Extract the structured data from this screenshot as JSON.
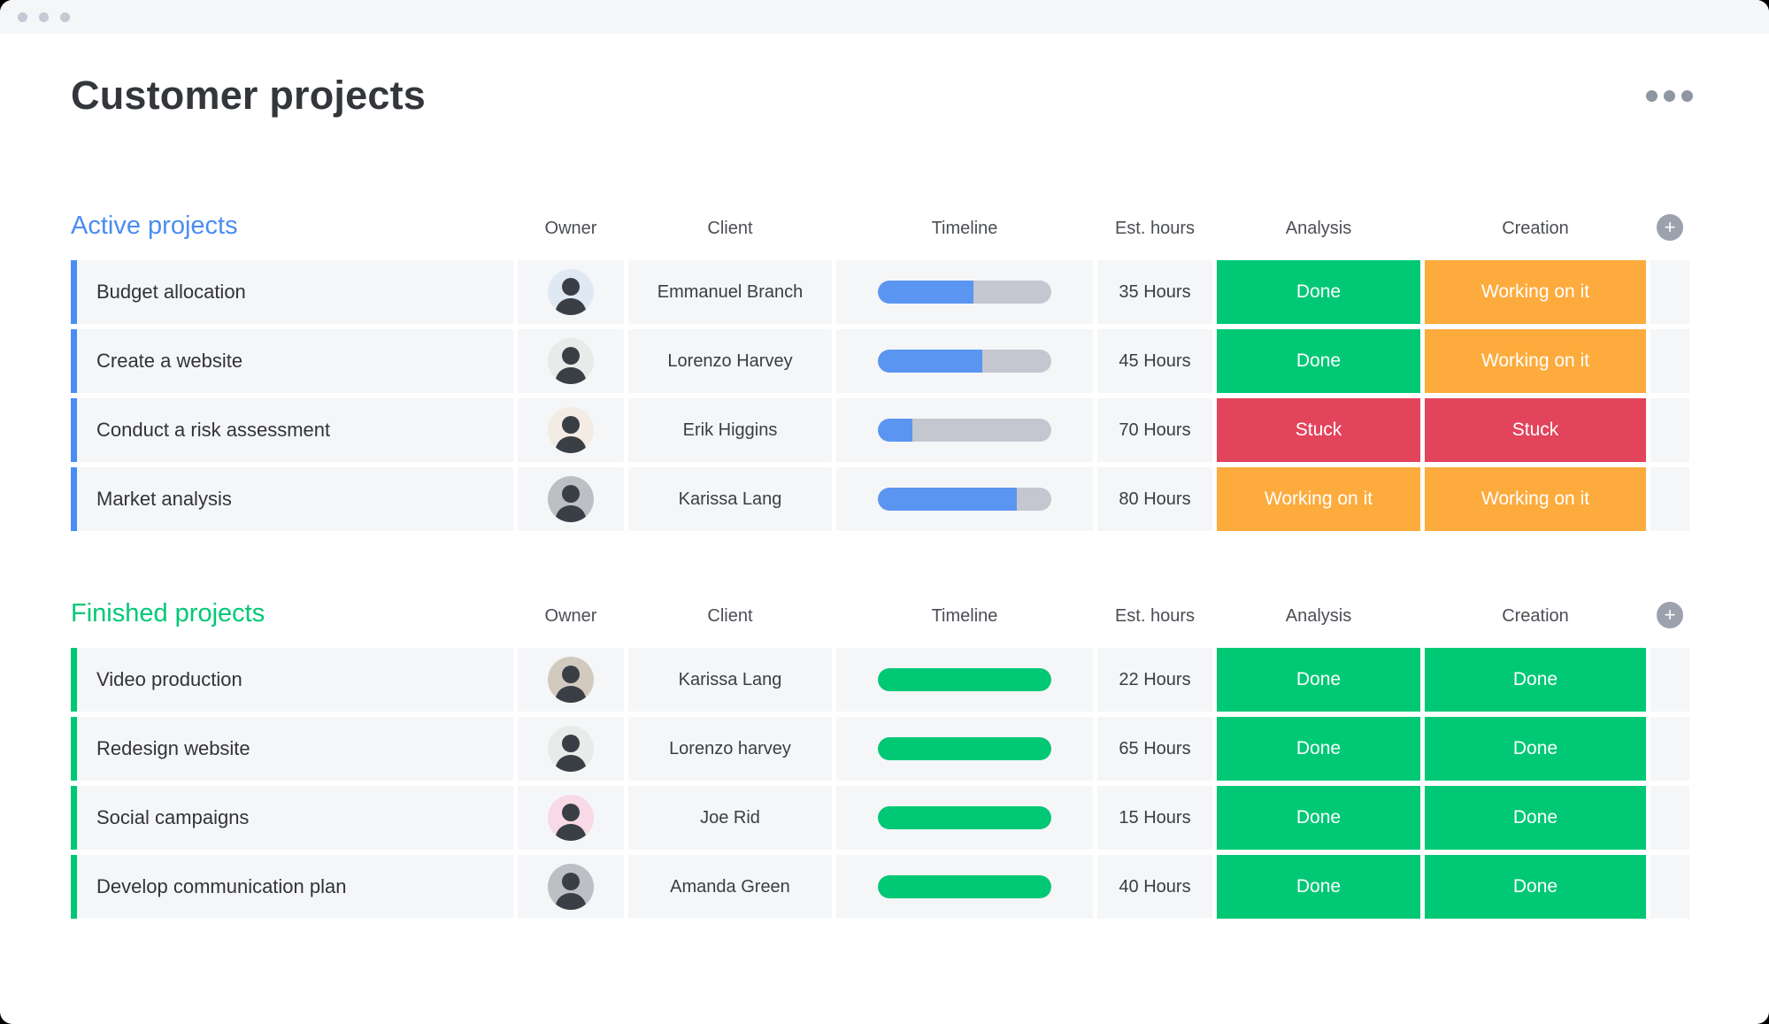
{
  "window": {
    "title": "Customer projects"
  },
  "columns": [
    "Owner",
    "Client",
    "Timeline",
    "Est. hours",
    "Analysis",
    "Creation"
  ],
  "ui": {
    "add_column_glyph": "+"
  },
  "status_colors": {
    "Done": "#00c875",
    "Working on it": "#fdab3d",
    "Stuck": "#e2445c"
  },
  "groups": [
    {
      "name": "Active projects",
      "accent": "#4a8df2",
      "timeline_color": "#5a95f2",
      "rows": [
        {
          "name": "Budget allocation",
          "client": "Emmanuel Branch",
          "timeline_pct": 55,
          "est_hours": "35 Hours",
          "analysis": "Done",
          "creation": "Working on it",
          "avatar_bg": "#dfe9f4"
        },
        {
          "name": "Create a website",
          "client": "Lorenzo Harvey",
          "timeline_pct": 60,
          "est_hours": "45 Hours",
          "analysis": "Done",
          "creation": "Working on it",
          "avatar_bg": "#e9ebea"
        },
        {
          "name": "Conduct a risk assessment",
          "client": "Erik Higgins",
          "timeline_pct": 20,
          "est_hours": "70 Hours",
          "analysis": "Stuck",
          "creation": "Stuck",
          "avatar_bg": "#f3ece4"
        },
        {
          "name": "Market analysis",
          "client": "Karissa Lang",
          "timeline_pct": 80,
          "est_hours": "80 Hours",
          "analysis": "Working on it",
          "creation": "Working on it",
          "avatar_bg": "#bcbfc4"
        }
      ]
    },
    {
      "name": "Finished projects",
      "accent": "#00c875",
      "timeline_color": "#00c875",
      "rows": [
        {
          "name": "Video production",
          "client": "Karissa Lang",
          "timeline_pct": 100,
          "est_hours": "22 Hours",
          "analysis": "Done",
          "creation": "Done",
          "avatar_bg": "#d3cabf"
        },
        {
          "name": "Redesign website",
          "client": "Lorenzo harvey",
          "timeline_pct": 100,
          "est_hours": "65 Hours",
          "analysis": "Done",
          "creation": "Done",
          "avatar_bg": "#e9ebea"
        },
        {
          "name": "Social campaigns",
          "client": "Joe Rid",
          "timeline_pct": 100,
          "est_hours": "15 Hours",
          "analysis": "Done",
          "creation": "Done",
          "avatar_bg": "#f8d9e6"
        },
        {
          "name": "Develop communication plan",
          "client": "Amanda Green",
          "timeline_pct": 100,
          "est_hours": "40 Hours",
          "analysis": "Done",
          "creation": "Done",
          "avatar_bg": "#bcbfc4"
        }
      ]
    }
  ]
}
